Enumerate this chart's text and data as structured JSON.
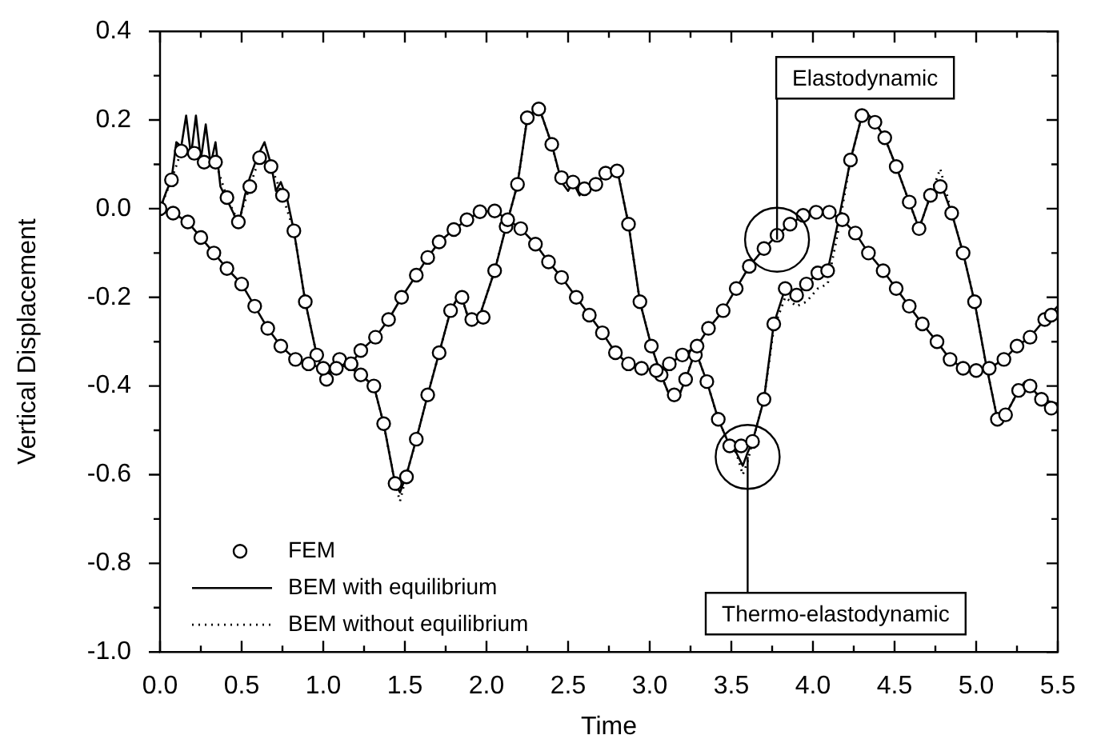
{
  "chart_data": {
    "type": "line",
    "xlabel": "Time",
    "ylabel": "Vertical Displacement",
    "xlim": [
      0,
      5.5
    ],
    "xticks": [
      {
        "value": 0,
        "label": "0.0"
      },
      {
        "value": 0.25,
        "label": null
      },
      {
        "value": 0.5,
        "label": "0.5"
      },
      {
        "value": 0.75,
        "label": null
      },
      {
        "value": 1,
        "label": "1.0"
      },
      {
        "value": 1.25,
        "label": null
      },
      {
        "value": 1.5,
        "label": "1.5"
      },
      {
        "value": 1.75,
        "label": null
      },
      {
        "value": 2,
        "label": "2.0"
      },
      {
        "value": 2.25,
        "label": null
      },
      {
        "value": 2.5,
        "label": "2.5"
      },
      {
        "value": 2.75,
        "label": null
      },
      {
        "value": 3,
        "label": "3.0"
      },
      {
        "value": 3.25,
        "label": null
      },
      {
        "value": 3.5,
        "label": "3.5"
      },
      {
        "value": 3.75,
        "label": null
      },
      {
        "value": 4,
        "label": "4.0"
      },
      {
        "value": 4.25,
        "label": null
      },
      {
        "value": 4.5,
        "label": "4.5"
      },
      {
        "value": 4.75,
        "label": null
      },
      {
        "value": 5,
        "label": "5.0"
      },
      {
        "value": 5.25,
        "label": null
      },
      {
        "value": 5.5,
        "label": "5.5"
      }
    ],
    "ylim": [
      -1.0,
      0.4
    ],
    "yticks": [
      {
        "value": -1,
        "label": "-1.0"
      },
      {
        "value": -0.9,
        "label": null
      },
      {
        "value": -0.8,
        "label": "-0.8"
      },
      {
        "value": -0.7,
        "label": null
      },
      {
        "value": -0.6,
        "label": "-0.6"
      },
      {
        "value": -0.5,
        "label": null
      },
      {
        "value": -0.4,
        "label": "-0.4"
      },
      {
        "value": -0.3,
        "label": null
      },
      {
        "value": -0.2,
        "label": "-0.2"
      },
      {
        "value": -0.1,
        "label": null
      },
      {
        "value": 0,
        "label": "0.0"
      },
      {
        "value": 0.1,
        "label": null
      },
      {
        "value": 0.2,
        "label": "0.2"
      },
      {
        "value": 0.3,
        "label": null
      },
      {
        "value": 0.4,
        "label": "0.4"
      }
    ],
    "grid": false,
    "legend": "bottom left",
    "annotations": [
      {
        "text": "Elastodynamic",
        "x": 3.78,
        "y": -0.07
      },
      {
        "text": "Thermo-elastodynamic",
        "x": 3.6,
        "y": -0.56
      }
    ],
    "series": [
      {
        "name": "FEM",
        "type": "scatter",
        "marker": "circle",
        "color": "#000000",
        "x": [
          0,
          0.08,
          0.17,
          0.25,
          0.33,
          0.41,
          0.5,
          0.58,
          0.66,
          0.74,
          0.83,
          0.91,
          1.0,
          1.08,
          1.17,
          1.23,
          1.32,
          1.4,
          1.48,
          1.57,
          1.64,
          1.71,
          1.8,
          1.88,
          1.96,
          2.05,
          2.13,
          2.21,
          2.3,
          2.38,
          2.46,
          2.55,
          2.63,
          2.71,
          2.79,
          2.87,
          2.95,
          3.04,
          3.12,
          3.2,
          3.29,
          3.36,
          3.45,
          3.53,
          3.61,
          3.7,
          3.78,
          3.86,
          3.94,
          4.02,
          4.1,
          4.18,
          4.26,
          4.34,
          4.43,
          4.51,
          4.59,
          4.67,
          4.76,
          4.84,
          4.92,
          5.0,
          5.08,
          5.17,
          5.25,
          5.33,
          5.42,
          5.46
        ],
        "values": [
          0,
          -0.01,
          -0.03,
          -0.065,
          -0.1,
          -0.135,
          -0.17,
          -0.22,
          -0.27,
          -0.31,
          -0.34,
          -0.35,
          -0.36,
          -0.36,
          -0.35,
          -0.32,
          -0.29,
          -0.25,
          -0.2,
          -0.15,
          -0.11,
          -0.075,
          -0.047,
          -0.025,
          -0.007,
          -0.005,
          -0.025,
          -0.045,
          -0.08,
          -0.12,
          -0.155,
          -0.2,
          -0.24,
          -0.28,
          -0.325,
          -0.35,
          -0.36,
          -0.365,
          -0.35,
          -0.33,
          -0.31,
          -0.27,
          -0.23,
          -0.18,
          -0.13,
          -0.09,
          -0.06,
          -0.035,
          -0.015,
          -0.008,
          -0.008,
          -0.025,
          -0.055,
          -0.1,
          -0.14,
          -0.18,
          -0.22,
          -0.26,
          -0.3,
          -0.34,
          -0.36,
          -0.365,
          -0.36,
          -0.34,
          -0.31,
          -0.29,
          -0.25,
          -0.24
        ]
      },
      {
        "type": "scatter",
        "marker": "circle",
        "color": "#000000",
        "x": [
          0.07,
          0.13,
          0.21,
          0.27,
          0.34,
          0.41,
          0.48,
          0.55,
          0.61,
          0.68,
          0.75,
          0.82,
          0.89,
          0.96,
          1.02,
          1.1,
          1.17,
          1.23,
          1.31,
          1.37,
          1.44,
          1.51,
          1.57,
          1.64,
          1.71,
          1.78,
          1.85,
          1.91,
          1.98,
          2.05,
          2.12,
          2.19,
          2.25,
          2.32,
          2.4,
          2.46,
          2.53,
          2.6,
          2.67,
          2.73,
          2.8,
          2.87,
          2.94,
          3.01,
          3.07,
          3.15,
          3.22,
          3.28,
          3.35,
          3.42,
          3.49,
          3.56,
          3.63,
          3.7,
          3.76,
          3.83,
          3.9,
          3.96,
          4.03,
          4.09,
          4.23,
          4.3,
          4.38,
          4.44,
          4.51,
          4.59,
          4.65,
          4.72,
          4.78,
          4.85,
          4.92,
          4.99,
          5.13,
          5.18,
          5.26,
          5.33,
          5.4,
          5.46
        ],
        "values": [
          0.065,
          0.13,
          0.125,
          0.105,
          0.105,
          0.025,
          -0.03,
          0.05,
          0.115,
          0.095,
          0.03,
          -0.05,
          -0.21,
          -0.33,
          -0.385,
          -0.34,
          -0.35,
          -0.375,
          -0.4,
          -0.485,
          -0.62,
          -0.605,
          -0.52,
          -0.42,
          -0.325,
          -0.23,
          -0.2,
          -0.25,
          -0.245,
          -0.14,
          -0.04,
          0.055,
          0.205,
          0.225,
          0.145,
          0.07,
          0.06,
          0.045,
          0.055,
          0.08,
          0.085,
          -0.035,
          -0.21,
          -0.31,
          -0.375,
          -0.42,
          -0.385,
          -0.33,
          -0.39,
          -0.475,
          -0.535,
          -0.535,
          -0.525,
          -0.43,
          -0.26,
          -0.18,
          -0.195,
          -0.17,
          -0.145,
          -0.14,
          0.11,
          0.21,
          0.195,
          0.16,
          0.095,
          0.015,
          -0.045,
          0.03,
          0.05,
          -0.01,
          -0.1,
          -0.21,
          -0.475,
          -0.465,
          -0.41,
          -0.4,
          -0.43,
          -0.45
        ]
      },
      {
        "type": "line",
        "line_style": "solid",
        "color": "#000000",
        "x": [
          0,
          0.08,
          0.17,
          0.25,
          0.33,
          0.41,
          0.5,
          0.58,
          0.66,
          0.74,
          0.83,
          0.91,
          1.0,
          1.08,
          1.17,
          1.23,
          1.32,
          1.4,
          1.48,
          1.57,
          1.64,
          1.71,
          1.8,
          1.88,
          1.96,
          2.05,
          2.13,
          2.21,
          2.3,
          2.38,
          2.46,
          2.55,
          2.63,
          2.71,
          2.79,
          2.87,
          2.95,
          3.04,
          3.12,
          3.2,
          3.29,
          3.36,
          3.45,
          3.53,
          3.61,
          3.7,
          3.78,
          3.86,
          3.94,
          4.02,
          4.1,
          4.18,
          4.26,
          4.34,
          4.43,
          4.51,
          4.59,
          4.67,
          4.76,
          4.84,
          4.92,
          5.0,
          5.08,
          5.17,
          5.25,
          5.33,
          5.42,
          5.5
        ],
        "values": [
          0,
          -0.01,
          -0.03,
          -0.065,
          -0.1,
          -0.135,
          -0.17,
          -0.22,
          -0.27,
          -0.31,
          -0.34,
          -0.35,
          -0.36,
          -0.36,
          -0.35,
          -0.32,
          -0.29,
          -0.25,
          -0.2,
          -0.15,
          -0.11,
          -0.075,
          -0.047,
          -0.025,
          -0.007,
          -0.005,
          -0.025,
          -0.045,
          -0.08,
          -0.12,
          -0.155,
          -0.2,
          -0.24,
          -0.28,
          -0.325,
          -0.35,
          -0.36,
          -0.365,
          -0.35,
          -0.33,
          -0.31,
          -0.27,
          -0.23,
          -0.18,
          -0.13,
          -0.09,
          -0.06,
          -0.035,
          -0.015,
          -0.008,
          -0.008,
          -0.025,
          -0.055,
          -0.1,
          -0.14,
          -0.18,
          -0.22,
          -0.26,
          -0.3,
          -0.34,
          -0.36,
          -0.365,
          -0.36,
          -0.34,
          -0.31,
          -0.29,
          -0.25,
          -0.22
        ]
      },
      {
        "name": "BEM with equilibrium",
        "type": "line",
        "line_style": "solid",
        "color": "#000000",
        "x": [
          0,
          0.04,
          0.07,
          0.1,
          0.13,
          0.16,
          0.19,
          0.22,
          0.25,
          0.28,
          0.31,
          0.34,
          0.37,
          0.41,
          0.45,
          0.48,
          0.52,
          0.55,
          0.6,
          0.64,
          0.68,
          0.71,
          0.74,
          0.78,
          0.82,
          0.89,
          0.96,
          1.02,
          1.07,
          1.12,
          1.17,
          1.23,
          1.31,
          1.37,
          1.44,
          1.47,
          1.51,
          1.57,
          1.64,
          1.71,
          1.78,
          1.84,
          1.9,
          1.96,
          2.05,
          2.12,
          2.19,
          2.25,
          2.32,
          2.4,
          2.46,
          2.5,
          2.53,
          2.57,
          2.6,
          2.67,
          2.73,
          2.8,
          2.87,
          2.94,
          3.01,
          3.07,
          3.13,
          3.17,
          3.22,
          3.28,
          3.35,
          3.42,
          3.49,
          3.53,
          3.57,
          3.6,
          3.63,
          3.7,
          3.76,
          3.83,
          3.9,
          3.96,
          4.03,
          4.09,
          4.16,
          4.23,
          4.3,
          4.32,
          4.38,
          4.44,
          4.51,
          4.59,
          4.65,
          4.72,
          4.78,
          4.85,
          4.92,
          4.99,
          5.06,
          5.13,
          5.18,
          5.26,
          5.3,
          5.33,
          5.4,
          5.5
        ],
        "values": [
          0,
          0.04,
          0.065,
          0.15,
          0.14,
          0.21,
          0.12,
          0.21,
          0.11,
          0.19,
          0.1,
          0.15,
          0.05,
          0.02,
          -0.01,
          -0.04,
          0.03,
          0.07,
          0.12,
          0.15,
          0.1,
          0.04,
          0.06,
          0.02,
          -0.05,
          -0.21,
          -0.33,
          -0.385,
          -0.35,
          -0.33,
          -0.36,
          -0.375,
          -0.4,
          -0.485,
          -0.62,
          -0.64,
          -0.6,
          -0.52,
          -0.42,
          -0.325,
          -0.23,
          -0.19,
          -0.26,
          -0.24,
          -0.14,
          -0.04,
          0.055,
          0.205,
          0.23,
          0.145,
          0.06,
          0.04,
          0.06,
          0.03,
          0.045,
          0.055,
          0.08,
          0.09,
          -0.035,
          -0.21,
          -0.31,
          -0.375,
          -0.43,
          -0.43,
          -0.385,
          -0.32,
          -0.39,
          -0.475,
          -0.535,
          -0.55,
          -0.58,
          -0.55,
          -0.525,
          -0.43,
          -0.26,
          -0.18,
          -0.195,
          -0.17,
          -0.145,
          -0.14,
          -0.02,
          0.11,
          0.21,
          0.22,
          0.195,
          0.16,
          0.095,
          0.015,
          -0.045,
          0.03,
          0.06,
          -0.01,
          -0.1,
          -0.21,
          -0.35,
          -0.475,
          -0.465,
          -0.41,
          -0.39,
          -0.4,
          -0.43,
          -0.44
        ]
      },
      {
        "name": "BEM without equilibrium",
        "type": "line",
        "line_style": "dotted",
        "color": "#000000",
        "x": [
          0,
          0.07,
          0.13,
          0.21,
          0.27,
          0.34,
          0.41,
          0.48,
          0.55,
          0.61,
          0.68,
          0.75,
          0.82,
          0.89,
          0.96,
          1.02,
          1.07,
          1.12,
          1.17,
          1.23,
          1.31,
          1.37,
          1.44,
          1.47,
          1.51,
          1.57,
          1.64,
          1.71,
          1.78,
          1.84,
          1.9,
          1.96,
          2.05,
          2.12,
          2.19,
          2.25,
          2.32,
          2.4,
          2.46,
          2.53,
          2.6,
          2.67,
          2.73,
          2.8,
          2.87,
          2.94,
          3.01,
          3.07,
          3.13,
          3.17,
          3.22,
          3.28,
          3.35,
          3.42,
          3.49,
          3.53,
          3.57,
          3.6,
          3.63,
          3.7,
          3.76,
          3.83,
          3.9,
          3.96,
          4.03,
          4.09,
          4.16,
          4.23,
          4.3,
          4.32,
          4.38,
          4.44,
          4.51,
          4.59,
          4.65,
          4.72,
          4.78,
          4.85,
          4.92,
          4.99,
          5.06,
          5.13,
          5.18,
          5.26,
          5.3,
          5.33,
          5.4,
          5.5
        ],
        "values": [
          0,
          0.065,
          0.13,
          0.125,
          0.105,
          0.105,
          0.025,
          -0.03,
          0.05,
          0.115,
          0.095,
          0.03,
          -0.05,
          -0.21,
          -0.33,
          -0.385,
          -0.35,
          -0.33,
          -0.36,
          -0.375,
          -0.4,
          -0.485,
          -0.62,
          -0.66,
          -0.6,
          -0.52,
          -0.42,
          -0.325,
          -0.23,
          -0.19,
          -0.26,
          -0.24,
          -0.14,
          -0.04,
          0.055,
          0.205,
          0.23,
          0.145,
          0.06,
          0.06,
          0.045,
          0.055,
          0.08,
          0.09,
          -0.035,
          -0.21,
          -0.31,
          -0.375,
          -0.43,
          -0.43,
          -0.385,
          -0.32,
          -0.39,
          -0.475,
          -0.535,
          -0.55,
          -0.6,
          -0.57,
          -0.525,
          -0.43,
          -0.27,
          -0.2,
          -0.22,
          -0.21,
          -0.18,
          -0.17,
          -0.04,
          0.11,
          0.21,
          0.22,
          0.195,
          0.16,
          0.095,
          0.015,
          -0.045,
          0.03,
          0.09,
          -0.01,
          -0.1,
          -0.21,
          -0.35,
          -0.475,
          -0.465,
          -0.41,
          -0.39,
          -0.4,
          -0.43,
          -0.44
        ]
      }
    ]
  }
}
